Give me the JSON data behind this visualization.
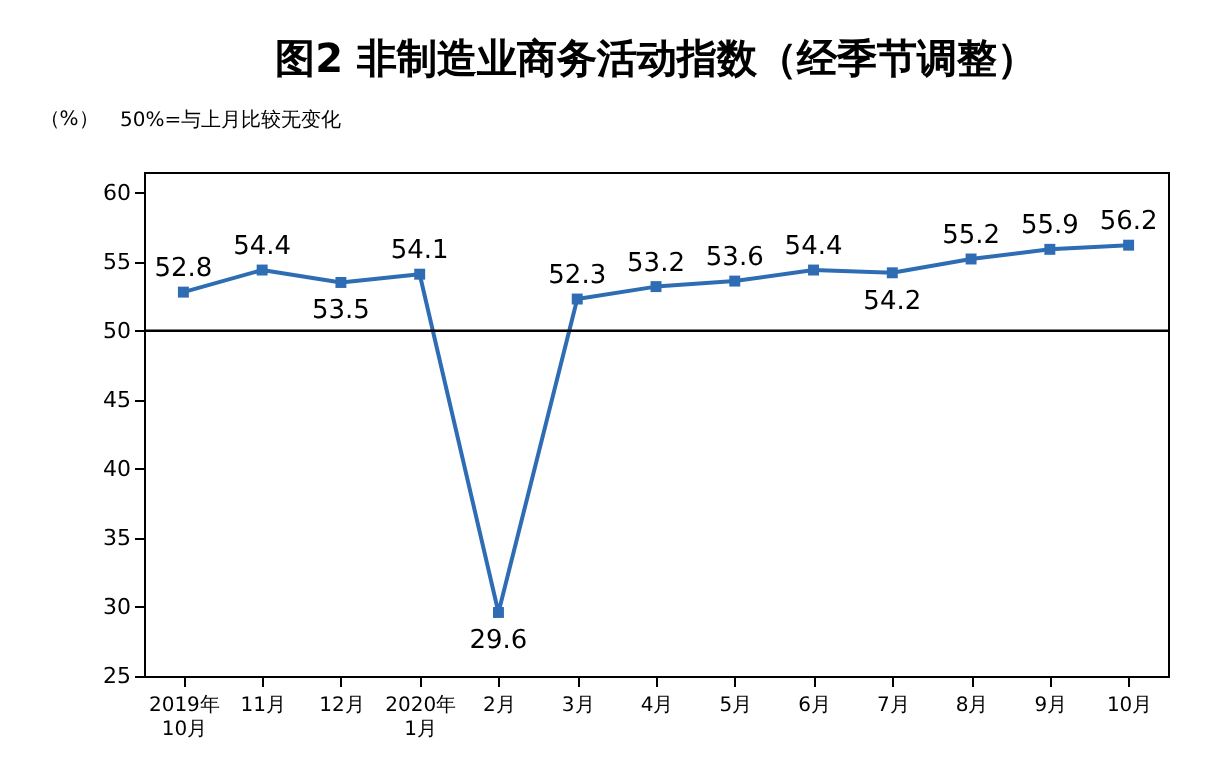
{
  "chart_data": {
    "type": "line",
    "title": "图2 非制造业商务活动指数（经季节调整）",
    "ylabel": "（%）",
    "annotations": [
      "50%=与上月比较无变化"
    ],
    "categories": [
      "2019年\n10月",
      "11月",
      "12月",
      "2020年\n1月",
      "2月",
      "3月",
      "4月",
      "5月",
      "6月",
      "7月",
      "8月",
      "9月",
      "10月"
    ],
    "series": [
      {
        "color": "#2e6db4",
        "values": [
          52.8,
          54.4,
          53.5,
          54.1,
          29.6,
          52.3,
          53.2,
          53.6,
          54.4,
          54.2,
          55.2,
          55.9,
          56.2
        ]
      }
    ],
    "ylim": [
      25,
      61.5
    ],
    "yticks": [
      25,
      30,
      35,
      40,
      45,
      50,
      55,
      60
    ],
    "ref_lines": [
      {
        "axis": "y",
        "value": 50,
        "color": "#000000"
      }
    ],
    "data_labels": true,
    "marker": "square",
    "line_style": "solid",
    "grid": false
  }
}
